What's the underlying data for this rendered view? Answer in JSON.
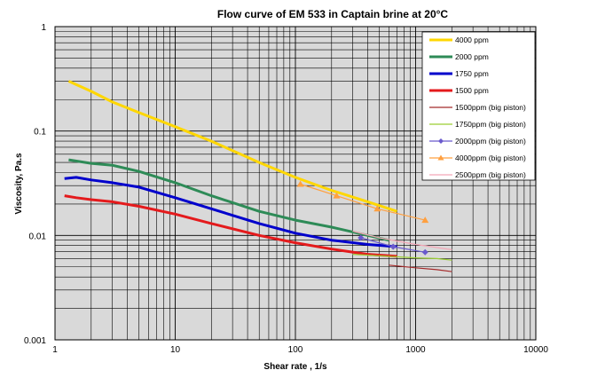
{
  "chart_data": {
    "type": "line",
    "title": "Flow curve of EM 533 in Captain brine at 20°C",
    "xlabel": "Shear rate , 1/s",
    "ylabel": "Viscosity, Pa.s",
    "x_scale": "log",
    "y_scale": "log",
    "xlim": [
      1,
      10000
    ],
    "ylim": [
      0.001,
      1
    ],
    "x_ticks": [
      "1",
      "10",
      "100",
      "1000",
      "10000"
    ],
    "y_ticks": [
      "0.001",
      "0.01",
      "0.1",
      "1"
    ],
    "grid": true,
    "plot_background": "#d9d9d9",
    "legend_position": "top-right",
    "series": [
      {
        "name": "4000 ppm",
        "color": "#ffd700",
        "width": 3,
        "marker": "none",
        "x": [
          1.3,
          2,
          3,
          5,
          10,
          20,
          50,
          100,
          200,
          400,
          700
        ],
        "y": [
          0.3,
          0.24,
          0.19,
          0.15,
          0.11,
          0.08,
          0.05,
          0.036,
          0.027,
          0.021,
          0.017
        ]
      },
      {
        "name": "2000 ppm",
        "color": "#2e8b57",
        "width": 3,
        "marker": "none",
        "x": [
          1.3,
          2,
          3,
          5,
          10,
          20,
          50,
          100,
          200,
          400,
          600
        ],
        "y": [
          0.053,
          0.049,
          0.047,
          0.041,
          0.032,
          0.024,
          0.017,
          0.014,
          0.012,
          0.01,
          0.009
        ]
      },
      {
        "name": "1750 ppm",
        "color": "#0000cc",
        "width": 3,
        "marker": "none",
        "x": [
          1.2,
          1.5,
          2,
          3,
          5,
          10,
          20,
          50,
          100,
          200,
          400,
          700
        ],
        "y": [
          0.035,
          0.036,
          0.034,
          0.032,
          0.029,
          0.023,
          0.018,
          0.013,
          0.0105,
          0.009,
          0.0082,
          0.0078
        ]
      },
      {
        "name": "1500 ppm",
        "color": "#e41a1c",
        "width": 3,
        "marker": "none",
        "x": [
          1.2,
          1.5,
          2,
          3,
          5,
          10,
          20,
          50,
          100,
          200,
          400,
          700
        ],
        "y": [
          0.024,
          0.023,
          0.022,
          0.021,
          0.019,
          0.016,
          0.013,
          0.01,
          0.0085,
          0.0074,
          0.0066,
          0.0063
        ]
      },
      {
        "name": "1500ppm (big piston)",
        "color": "#a52a2a",
        "width": 1.2,
        "marker": "none",
        "x": [
          600,
          1000,
          1500,
          2000
        ],
        "y": [
          0.0052,
          0.0049,
          0.0047,
          0.0045
        ]
      },
      {
        "name": "1750ppm (big piston)",
        "color": "#9acd32",
        "width": 1.2,
        "marker": "none",
        "x": [
          300,
          600,
          1000,
          1500,
          2000
        ],
        "y": [
          0.0066,
          0.0063,
          0.0061,
          0.006,
          0.0058
        ]
      },
      {
        "name": "2000ppm (big piston)",
        "color": "#6a5acd",
        "width": 1.2,
        "marker": "diamond",
        "x": [
          350,
          650,
          1200
        ],
        "y": [
          0.0095,
          0.0078,
          0.0069
        ]
      },
      {
        "name": "4000ppm (big piston)",
        "color": "#ffa040",
        "width": 1.2,
        "marker": "triangle",
        "x": [
          110,
          220,
          480,
          1200
        ],
        "y": [
          0.031,
          0.024,
          0.018,
          0.014
        ]
      },
      {
        "name": "2500ppm (big piston)",
        "color": "#f4a6b6",
        "width": 1.2,
        "marker": "none",
        "x": [
          300,
          500,
          1000,
          2000
        ],
        "y": [
          0.011,
          0.0095,
          0.0082,
          0.0073
        ]
      }
    ]
  }
}
